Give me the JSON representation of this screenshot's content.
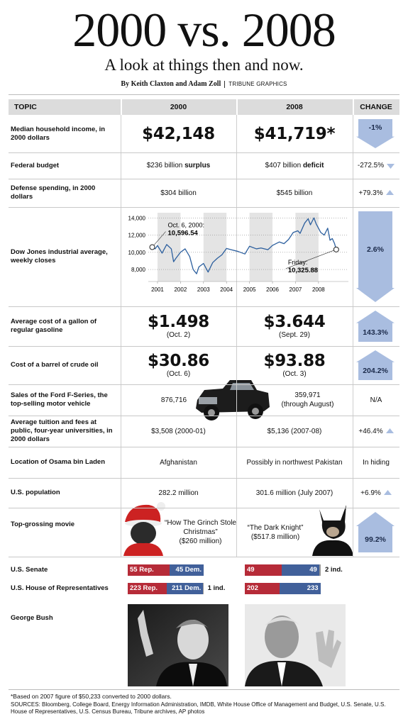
{
  "header": {
    "title": "2000 vs. 2008",
    "subtitle": "A look at things then and now.",
    "byline": "By Keith Claxton and Adam Zoll",
    "credit": "TRIBUNE GRAPHICS"
  },
  "table": {
    "columns": [
      "TOPIC",
      "2000",
      "2008",
      "CHANGE"
    ],
    "rows": [
      {
        "topic": "Median household income, in 2000 dollars",
        "2000": {
          "big": "$42,148"
        },
        "2008": {
          "big": "$41,719*"
        },
        "change": "-1%",
        "arrow": "down",
        "arrow_size": "large"
      },
      {
        "topic": "Federal budget",
        "2000": {
          "text": "$236 billion ",
          "bold": "surplus"
        },
        "2008": {
          "text": "$407 billion ",
          "bold": "deficit"
        },
        "change": "-272.5%",
        "arrow": "down",
        "arrow_size": "small"
      },
      {
        "topic": "Defense spending, in 2000 dollars",
        "2000": {
          "text": "$304 billion"
        },
        "2008": {
          "text": "$545 billion"
        },
        "change": "+79.3%",
        "arrow": "up",
        "arrow_size": "small"
      },
      {
        "topic": "Dow Jones industrial average, weekly closes",
        "change": "2.6%",
        "arrow": "down",
        "arrow_size": "large"
      },
      {
        "topic": "Average cost of a gallon of regular gasoline",
        "2000": {
          "big": "$1.498",
          "note": "(Oct. 2)"
        },
        "2008": {
          "big": "$3.644",
          "note": "(Sept. 29)"
        },
        "change": "143.3%",
        "arrow": "up",
        "arrow_size": "large"
      },
      {
        "topic": "Cost of a barrel of crude oil",
        "2000": {
          "big": "$30.86",
          "note": "(Oct. 6)"
        },
        "2008": {
          "big": "$93.88",
          "note": "(Oct. 3)"
        },
        "change": "204.2%",
        "arrow": "up",
        "arrow_size": "large"
      },
      {
        "topic": "Sales of the Ford F-Series, the top-selling motor vehicle",
        "2000": {
          "text": "876,716"
        },
        "2008": {
          "text": "359,971",
          "note": "(through August)"
        },
        "change": "N/A"
      },
      {
        "topic": "Average tuition and fees at public, four-year universities, in 2000 dollars",
        "2000": {
          "text": "$3,508 (2000-01)"
        },
        "2008": {
          "text": "$5,136 (2007-08)"
        },
        "change": "+46.4%",
        "arrow": "up",
        "arrow_size": "small"
      },
      {
        "topic": "Location of Osama bin Laden",
        "2000": {
          "text": "Afghanistan"
        },
        "2008": {
          "text": "Possibly in northwest Pakistan"
        },
        "change": "In hiding"
      },
      {
        "topic": "U.S. population",
        "2000": {
          "text": "282.2 million"
        },
        "2008": {
          "text": "301.6 million (July 2007)"
        },
        "change": "+6.9%",
        "arrow": "up",
        "arrow_size": "small"
      },
      {
        "topic": "Top-grossing movie",
        "2000": {
          "text": "“How The Grinch Stole Christmas”",
          "note": "($260 million)"
        },
        "2008": {
          "text": "“The Dark Knight”",
          "note": "($517.8 million)"
        },
        "change": "99.2%",
        "arrow": "up",
        "arrow_size": "large"
      },
      {
        "topic": "George Bush"
      }
    ]
  },
  "chart_data": {
    "type": "line",
    "x": [
      2000.77,
      2000.9,
      2001.0,
      2001.2,
      2001.4,
      2001.6,
      2001.7,
      2001.8,
      2002.0,
      2002.2,
      2002.4,
      2002.55,
      2002.7,
      2002.8,
      2003.0,
      2003.2,
      2003.4,
      2003.6,
      2003.8,
      2004.0,
      2004.2,
      2004.5,
      2004.8,
      2005.0,
      2005.3,
      2005.5,
      2005.8,
      2006.0,
      2006.3,
      2006.5,
      2006.7,
      2006.9,
      2007.1,
      2007.2,
      2007.4,
      2007.55,
      2007.65,
      2007.8,
      2007.9,
      2008.0,
      2008.1,
      2008.25,
      2008.4,
      2008.5,
      2008.6,
      2008.7,
      2008.77
    ],
    "values": [
      10596.54,
      10400,
      10787,
      9900,
      10900,
      10400,
      8900,
      9300,
      10000,
      10400,
      9500,
      8000,
      7500,
      8300,
      8700,
      7700,
      8800,
      9300,
      9700,
      10450,
      10300,
      10100,
      9800,
      10700,
      10400,
      10500,
      10300,
      10800,
      11200,
      11000,
      11500,
      12300,
      12500,
      12200,
      13400,
      13900,
      13200,
      14000,
      13300,
      12800,
      12300,
      12000,
      12800,
      11400,
      11600,
      11000,
      10325.88
    ],
    "color": "#2c5f9e",
    "xlim": [
      2000.6,
      2009.3
    ],
    "ylim": [
      6600,
      14600
    ],
    "xticks": [
      2001,
      2002,
      2003,
      2004,
      2005,
      2006,
      2007,
      2008
    ],
    "yticks": [
      {
        "value": 8000,
        "label": "8,000"
      },
      {
        "value": 10000,
        "label": "10,000"
      },
      {
        "value": 12000,
        "label": "12,000"
      },
      {
        "value": 14000,
        "label": "14,000"
      }
    ],
    "grid": true,
    "annotations": [
      {
        "x": 2000.77,
        "y": 10596.54,
        "text": "Oct. 6, 2000:",
        "label": "10,596.54"
      },
      {
        "x": 2008.77,
        "y": 10325.88,
        "text": "Friday:",
        "label": "10,325.88"
      }
    ]
  },
  "congress": {
    "senate": {
      "label": "U.S. Senate",
      "2000": [
        {
          "value": 55,
          "label": "55 Rep.",
          "color": "#b62b38"
        },
        {
          "value": 45,
          "label": "45 Dem.",
          "color": "#41609a"
        }
      ],
      "2008": [
        {
          "value": 49,
          "color": "#b62b38"
        },
        {
          "value": 49,
          "color": "#41609a"
        },
        {
          "value": 2,
          "label": "2 ind.",
          "color": "#999999"
        }
      ]
    },
    "house": {
      "label": "U.S. House of Representatives",
      "2000": [
        {
          "value": 223,
          "label": "223 Rep.",
          "color": "#b62b38"
        },
        {
          "value": 211,
          "label": "211 Dem.",
          "color": "#41609a"
        },
        {
          "value": 1,
          "label": "1 ind.",
          "color": "#999999"
        }
      ],
      "2008": [
        {
          "value": 202,
          "color": "#b62b38"
        },
        {
          "value": 233,
          "color": "#41609a"
        }
      ]
    }
  },
  "footer": {
    "footnote": "*Based on 2007 figure of $50,233 converted to 2000 dollars.",
    "sources": "SOURCES: Bloomberg, College Board, Energy Information Administration, IMDB, White House Office of Management and Budget, U.S. Senate, U.S. House of Representatives, U.S. Census Bureau, Tribune archives, AP photos"
  }
}
